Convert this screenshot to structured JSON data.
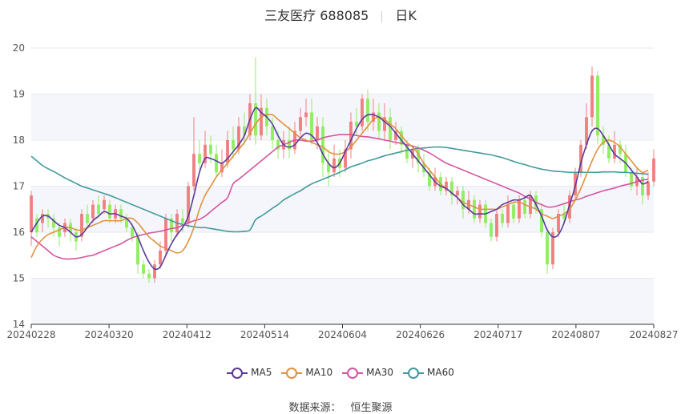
{
  "header": {
    "stock_name": "三友医疗 688085",
    "period": "日K"
  },
  "source": {
    "label": "数据来源：",
    "name": "恒生聚源"
  },
  "colors": {
    "up": "#f08080",
    "down": "#90ee60",
    "MA5": "#5b3a9a",
    "MA10": "#e0913f",
    "MA30": "#d2559f",
    "MA60": "#3f9a9c",
    "grid": "#e6e9f2",
    "band": "#f5f6fb"
  },
  "chart_data": {
    "type": "candlestick",
    "ylim": [
      14,
      20
    ],
    "yticks": [
      14,
      15,
      16,
      17,
      18,
      19,
      20
    ],
    "xtick_labels": [
      "20240228",
      "20240320",
      "20240412",
      "20240514",
      "20240604",
      "20240626",
      "20240717",
      "20240807",
      "20240827"
    ],
    "legend": [
      "MA5",
      "MA10",
      "MA30",
      "MA60"
    ],
    "candles": [
      [
        16.0,
        16.8,
        15.7,
        16.9
      ],
      [
        16.3,
        16.0,
        15.9,
        16.4
      ],
      [
        16.2,
        16.4,
        16.0,
        16.5
      ],
      [
        16.4,
        16.3,
        16.1,
        16.5
      ],
      [
        16.3,
        16.1,
        15.9,
        16.4
      ],
      [
        16.1,
        15.9,
        15.7,
        16.2
      ],
      [
        16.0,
        16.2,
        15.9,
        16.3
      ],
      [
        16.2,
        16.0,
        15.8,
        16.3
      ],
      [
        16.0,
        15.8,
        15.6,
        16.1
      ],
      [
        15.9,
        16.4,
        15.8,
        16.5
      ],
      [
        16.4,
        16.2,
        16.1,
        16.6
      ],
      [
        16.3,
        16.6,
        16.2,
        16.7
      ],
      [
        16.6,
        16.4,
        16.3,
        16.8
      ],
      [
        16.5,
        16.7,
        16.4,
        16.8
      ],
      [
        16.6,
        16.3,
        16.2,
        16.7
      ],
      [
        16.3,
        16.5,
        16.2,
        16.6
      ],
      [
        16.5,
        16.3,
        16.2,
        16.6
      ],
      [
        16.3,
        16.1,
        16.0,
        16.4
      ],
      [
        16.1,
        15.9,
        15.8,
        16.2
      ],
      [
        15.9,
        15.3,
        15.1,
        16.0
      ],
      [
        15.3,
        15.1,
        15.0,
        15.4
      ],
      [
        15.1,
        15.0,
        14.9,
        15.2
      ],
      [
        15.0,
        15.3,
        14.9,
        15.4
      ],
      [
        15.3,
        15.6,
        15.2,
        15.8
      ],
      [
        15.6,
        16.3,
        15.5,
        16.4
      ],
      [
        16.3,
        16.0,
        15.8,
        16.4
      ],
      [
        16.0,
        16.4,
        15.9,
        16.5
      ],
      [
        16.3,
        16.2,
        16.0,
        16.5
      ],
      [
        16.2,
        17.0,
        16.1,
        17.1
      ],
      [
        17.0,
        17.7,
        16.9,
        18.5
      ],
      [
        17.7,
        17.5,
        17.3,
        18.0
      ],
      [
        17.5,
        17.9,
        17.4,
        18.2
      ],
      [
        17.9,
        17.7,
        17.5,
        18.1
      ],
      [
        17.7,
        17.3,
        17.2,
        17.9
      ],
      [
        17.3,
        17.5,
        17.2,
        17.8
      ],
      [
        17.5,
        18.0,
        17.4,
        18.2
      ],
      [
        18.0,
        17.8,
        17.6,
        18.3
      ],
      [
        17.8,
        18.3,
        17.7,
        18.5
      ],
      [
        18.3,
        18.1,
        17.9,
        18.6
      ],
      [
        18.1,
        18.8,
        18.0,
        19.0
      ],
      [
        18.8,
        18.1,
        17.9,
        19.8
      ],
      [
        18.1,
        18.7,
        18.0,
        19.0
      ],
      [
        18.7,
        18.3,
        18.1,
        18.9
      ],
      [
        18.3,
        18.0,
        17.8,
        18.5
      ],
      [
        18.0,
        17.8,
        17.6,
        18.2
      ],
      [
        17.8,
        18.0,
        17.6,
        18.2
      ],
      [
        18.0,
        17.8,
        17.6,
        18.3
      ],
      [
        17.8,
        18.2,
        17.7,
        18.4
      ],
      [
        18.2,
        18.5,
        18.1,
        18.7
      ],
      [
        18.5,
        18.6,
        18.3,
        18.9
      ],
      [
        18.6,
        18.0,
        17.9,
        18.9
      ],
      [
        18.0,
        18.3,
        17.8,
        18.5
      ],
      [
        18.3,
        17.5,
        17.2,
        18.5
      ],
      [
        17.5,
        17.3,
        17.0,
        17.8
      ],
      [
        17.3,
        17.6,
        17.2,
        17.9
      ],
      [
        17.6,
        17.4,
        17.2,
        17.8
      ],
      [
        17.4,
        17.8,
        17.3,
        18.0
      ],
      [
        17.8,
        18.4,
        17.6,
        18.6
      ],
      [
        18.4,
        18.3,
        18.1,
        18.7
      ],
      [
        18.3,
        18.9,
        18.2,
        19.0
      ],
      [
        18.9,
        18.4,
        18.2,
        19.1
      ],
      [
        18.4,
        18.6,
        18.2,
        18.9
      ],
      [
        18.6,
        18.2,
        18.0,
        18.8
      ],
      [
        18.2,
        18.5,
        18.0,
        18.8
      ],
      [
        18.5,
        18.0,
        17.8,
        18.7
      ],
      [
        18.0,
        18.2,
        17.9,
        18.4
      ],
      [
        18.2,
        17.9,
        17.7,
        18.3
      ],
      [
        17.9,
        17.6,
        17.5,
        18.0
      ],
      [
        17.6,
        17.8,
        17.4,
        17.9
      ],
      [
        17.8,
        17.5,
        17.3,
        17.9
      ],
      [
        17.5,
        17.3,
        17.2,
        17.7
      ],
      [
        17.3,
        17.0,
        16.9,
        17.4
      ],
      [
        17.0,
        17.2,
        16.9,
        17.4
      ],
      [
        17.2,
        16.9,
        16.8,
        17.3
      ],
      [
        16.9,
        17.1,
        16.8,
        17.2
      ],
      [
        17.1,
        16.8,
        16.6,
        17.2
      ],
      [
        16.8,
        16.9,
        16.6,
        17.0
      ],
      [
        16.9,
        16.5,
        16.3,
        17.0
      ],
      [
        16.5,
        16.7,
        16.4,
        16.9
      ],
      [
        16.7,
        16.3,
        16.2,
        16.8
      ],
      [
        16.3,
        16.6,
        16.2,
        16.7
      ],
      [
        16.6,
        16.2,
        16.1,
        16.7
      ],
      [
        16.2,
        15.9,
        15.8,
        16.3
      ],
      [
        15.9,
        16.4,
        15.8,
        16.5
      ],
      [
        16.4,
        16.2,
        16.1,
        16.5
      ],
      [
        16.2,
        16.6,
        16.1,
        16.8
      ],
      [
        16.6,
        16.3,
        16.2,
        16.7
      ],
      [
        16.3,
        16.7,
        16.2,
        16.8
      ],
      [
        16.7,
        16.4,
        16.3,
        16.8
      ],
      [
        16.4,
        16.8,
        16.3,
        16.9
      ],
      [
        16.8,
        16.5,
        16.4,
        16.9
      ],
      [
        16.5,
        16.0,
        15.9,
        16.6
      ],
      [
        16.0,
        15.3,
        15.1,
        16.1
      ],
      [
        15.3,
        16.0,
        15.2,
        16.1
      ],
      [
        16.0,
        16.4,
        15.9,
        16.5
      ],
      [
        16.4,
        16.3,
        16.2,
        16.6
      ],
      [
        16.3,
        16.8,
        16.2,
        16.9
      ],
      [
        16.8,
        17.3,
        16.7,
        17.4
      ],
      [
        17.3,
        17.9,
        17.2,
        18.0
      ],
      [
        17.9,
        18.5,
        17.8,
        18.8
      ],
      [
        18.5,
        19.4,
        18.3,
        19.6
      ],
      [
        19.4,
        18.1,
        17.9,
        19.5
      ],
      [
        18.1,
        17.9,
        17.7,
        18.3
      ],
      [
        17.9,
        17.6,
        17.5,
        18.1
      ],
      [
        17.6,
        17.9,
        17.5,
        18.2
      ],
      [
        17.9,
        17.7,
        17.5,
        18.0
      ],
      [
        17.7,
        17.3,
        17.2,
        17.9
      ],
      [
        17.3,
        17.0,
        16.9,
        17.4
      ],
      [
        17.0,
        17.2,
        16.8,
        17.4
      ],
      [
        17.2,
        16.8,
        16.6,
        17.3
      ],
      [
        16.8,
        17.1,
        16.7,
        17.3
      ],
      [
        17.1,
        17.6,
        17.0,
        17.8
      ]
    ],
    "MA5": [
      16.0,
      16.2,
      16.35,
      16.35,
      16.25,
      16.15,
      16.1,
      16.0,
      15.9,
      15.95,
      16.1,
      16.25,
      16.35,
      16.45,
      16.4,
      16.4,
      16.35,
      16.3,
      16.15,
      15.9,
      15.6,
      15.35,
      15.2,
      15.25,
      15.5,
      15.75,
      15.95,
      16.1,
      16.35,
      16.8,
      17.3,
      17.6,
      17.6,
      17.55,
      17.5,
      17.6,
      17.75,
      17.9,
      18.1,
      18.45,
      18.7,
      18.6,
      18.5,
      18.35,
      18.1,
      17.9,
      17.85,
      17.9,
      18.05,
      18.15,
      18.1,
      17.95,
      17.7,
      17.5,
      17.4,
      17.5,
      17.75,
      18.0,
      18.25,
      18.45,
      18.55,
      18.55,
      18.5,
      18.4,
      18.3,
      18.15,
      18.0,
      17.85,
      17.7,
      17.55,
      17.4,
      17.25,
      17.1,
      17.0,
      16.95,
      16.85,
      16.75,
      16.6,
      16.5,
      16.4,
      16.4,
      16.4,
      16.45,
      16.5,
      16.6,
      16.65,
      16.7,
      16.7,
      16.75,
      16.8,
      16.6,
      16.35,
      16.05,
      15.9,
      15.95,
      16.2,
      16.6,
      17.0,
      17.5,
      17.9,
      18.2,
      18.25,
      18.1,
      17.9,
      17.7,
      17.6,
      17.5,
      17.35,
      17.2,
      17.05,
      17.1
    ],
    "MA10": [
      15.45,
      15.7,
      15.85,
      15.95,
      16.0,
      16.05,
      16.1,
      16.1,
      16.05,
      16.05,
      16.1,
      16.15,
      16.2,
      16.25,
      16.25,
      16.25,
      16.25,
      16.3,
      16.3,
      16.2,
      16.05,
      15.9,
      15.8,
      15.7,
      15.65,
      15.6,
      15.55,
      15.6,
      15.8,
      16.1,
      16.5,
      16.8,
      17.0,
      17.2,
      17.35,
      17.5,
      17.65,
      17.8,
      17.95,
      18.15,
      18.35,
      18.5,
      18.55,
      18.55,
      18.45,
      18.35,
      18.25,
      18.15,
      18.05,
      18.0,
      17.95,
      17.9,
      17.85,
      17.75,
      17.7,
      17.7,
      17.75,
      17.85,
      18.0,
      18.15,
      18.3,
      18.45,
      18.5,
      18.45,
      18.35,
      18.25,
      18.1,
      17.95,
      17.85,
      17.7,
      17.5,
      17.35,
      17.2,
      17.05,
      16.95,
      16.85,
      16.75,
      16.65,
      16.6,
      16.55,
      16.5,
      16.5,
      16.5,
      16.5,
      16.55,
      16.6,
      16.65,
      16.65,
      16.6,
      16.55,
      16.5,
      16.4,
      16.35,
      16.3,
      16.35,
      16.4,
      16.5,
      16.7,
      16.95,
      17.25,
      17.55,
      17.8,
      17.95,
      18.0,
      17.95,
      17.85,
      17.7,
      17.55,
      17.4,
      17.3,
      17.35
    ],
    "MA30": [
      15.9,
      15.8,
      15.7,
      15.6,
      15.5,
      15.45,
      15.42,
      15.42,
      15.43,
      15.45,
      15.48,
      15.5,
      15.55,
      15.6,
      15.65,
      15.7,
      15.75,
      15.82,
      15.88,
      15.92,
      15.95,
      15.98,
      16.0,
      16.02,
      16.05,
      16.08,
      16.1,
      16.15,
      16.2,
      16.25,
      16.28,
      16.35,
      16.45,
      16.55,
      16.65,
      16.75,
      17.05,
      17.15,
      17.25,
      17.35,
      17.45,
      17.55,
      17.65,
      17.75,
      17.85,
      17.9,
      17.95,
      18.0,
      18.0,
      17.98,
      17.98,
      18.0,
      18.05,
      18.08,
      18.1,
      18.12,
      18.12,
      18.12,
      18.1,
      18.08,
      18.07,
      18.05,
      18.03,
      18.0,
      17.98,
      17.95,
      17.93,
      17.9,
      17.87,
      17.83,
      17.78,
      17.72,
      17.65,
      17.57,
      17.5,
      17.45,
      17.4,
      17.35,
      17.3,
      17.25,
      17.2,
      17.15,
      17.1,
      17.05,
      17.0,
      16.95,
      16.9,
      16.85,
      16.78,
      16.72,
      16.65,
      16.6,
      16.55,
      16.55,
      16.58,
      16.62,
      16.66,
      16.7,
      16.73,
      16.78,
      16.82,
      16.86,
      16.9,
      16.93,
      16.96,
      17.0,
      17.03,
      17.06,
      17.1,
      17.13,
      17.15
    ],
    "MA60": [
      17.65,
      17.55,
      17.45,
      17.38,
      17.32,
      17.25,
      17.18,
      17.12,
      17.06,
      17.0,
      16.96,
      16.92,
      16.88,
      16.84,
      16.8,
      16.75,
      16.7,
      16.65,
      16.6,
      16.55,
      16.5,
      16.45,
      16.4,
      16.35,
      16.3,
      16.25,
      16.2,
      16.17,
      16.14,
      16.12,
      16.1,
      16.1,
      16.08,
      16.06,
      16.04,
      16.02,
      16.01,
      16.01,
      16.02,
      16.05,
      16.27,
      16.35,
      16.43,
      16.52,
      16.6,
      16.7,
      16.77,
      16.84,
      16.9,
      16.98,
      17.05,
      17.1,
      17.15,
      17.2,
      17.25,
      17.3,
      17.36,
      17.42,
      17.46,
      17.5,
      17.55,
      17.58,
      17.62,
      17.66,
      17.69,
      17.72,
      17.75,
      17.78,
      17.8,
      17.82,
      17.83,
      17.84,
      17.85,
      17.85,
      17.84,
      17.82,
      17.8,
      17.78,
      17.76,
      17.74,
      17.72,
      17.7,
      17.68,
      17.65,
      17.62,
      17.58,
      17.54,
      17.5,
      17.47,
      17.43,
      17.4,
      17.37,
      17.35,
      17.33,
      17.32,
      17.31,
      17.3,
      17.3,
      17.3,
      17.3,
      17.3,
      17.3,
      17.31,
      17.31,
      17.31,
      17.3,
      17.3,
      17.29,
      17.28,
      17.27,
      17.26
    ]
  }
}
